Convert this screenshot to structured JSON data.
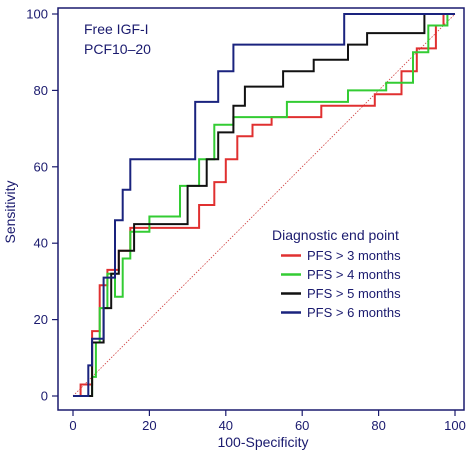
{
  "chart_data": {
    "type": "line",
    "title": "",
    "annotations": [
      "Free IGF-I",
      "PCF10–20"
    ],
    "xlabel": "100-Specificity",
    "ylabel": "Sensitivity",
    "xlim": [
      0,
      100
    ],
    "ylim": [
      0,
      100
    ],
    "xticks": [
      0,
      20,
      40,
      60,
      80,
      100
    ],
    "yticks": [
      0,
      20,
      40,
      60,
      80,
      100
    ],
    "grid": false,
    "legend": {
      "title": "Diagnostic end point",
      "placement": "right-middle"
    },
    "diagonal": {
      "color": "#d04040",
      "style": "dotted"
    },
    "series": [
      {
        "name": "PFS > 3 months",
        "color": "#e03030",
        "points": [
          [
            0,
            0
          ],
          [
            2,
            0
          ],
          [
            2,
            3
          ],
          [
            5,
            3
          ],
          [
            5,
            17
          ],
          [
            7,
            17
          ],
          [
            7,
            29
          ],
          [
            9,
            29
          ],
          [
            9,
            33
          ],
          [
            12,
            33
          ],
          [
            12,
            38
          ],
          [
            15,
            38
          ],
          [
            15,
            44
          ],
          [
            33,
            44
          ],
          [
            33,
            50
          ],
          [
            37,
            50
          ],
          [
            37,
            56
          ],
          [
            40,
            56
          ],
          [
            40,
            62
          ],
          [
            43,
            62
          ],
          [
            43,
            68
          ],
          [
            47,
            68
          ],
          [
            47,
            71
          ],
          [
            52,
            71
          ],
          [
            52,
            73
          ],
          [
            65,
            73
          ],
          [
            65,
            76
          ],
          [
            79,
            76
          ],
          [
            79,
            79
          ],
          [
            86,
            79
          ],
          [
            86,
            85
          ],
          [
            90,
            85
          ],
          [
            90,
            91
          ],
          [
            95,
            91
          ],
          [
            95,
            97
          ],
          [
            97,
            97
          ],
          [
            97,
            100
          ],
          [
            100,
            100
          ]
        ]
      },
      {
        "name": "PFS > 4 months",
        "color": "#33cc33",
        "points": [
          [
            0,
            0
          ],
          [
            5,
            0
          ],
          [
            5,
            5
          ],
          [
            6,
            5
          ],
          [
            6,
            14
          ],
          [
            7,
            14
          ],
          [
            7,
            23
          ],
          [
            9,
            23
          ],
          [
            9,
            32
          ],
          [
            11,
            32
          ],
          [
            11,
            26
          ],
          [
            13,
            26
          ],
          [
            13,
            36
          ],
          [
            15,
            36
          ],
          [
            15,
            43
          ],
          [
            20,
            43
          ],
          [
            20,
            47
          ],
          [
            28,
            47
          ],
          [
            28,
            55
          ],
          [
            33,
            55
          ],
          [
            33,
            62
          ],
          [
            37,
            62
          ],
          [
            37,
            71
          ],
          [
            42,
            71
          ],
          [
            42,
            73
          ],
          [
            56,
            73
          ],
          [
            56,
            77
          ],
          [
            72,
            77
          ],
          [
            72,
            80
          ],
          [
            82,
            80
          ],
          [
            82,
            82
          ],
          [
            89,
            82
          ],
          [
            89,
            90
          ],
          [
            93,
            90
          ],
          [
            93,
            97
          ],
          [
            98,
            97
          ],
          [
            98,
            100
          ],
          [
            100,
            100
          ]
        ]
      },
      {
        "name": "PFS > 5 months",
        "color": "#111111",
        "points": [
          [
            0,
            0
          ],
          [
            5,
            0
          ],
          [
            5,
            14
          ],
          [
            8,
            14
          ],
          [
            8,
            23
          ],
          [
            10,
            23
          ],
          [
            10,
            32
          ],
          [
            12,
            32
          ],
          [
            12,
            38
          ],
          [
            16,
            38
          ],
          [
            16,
            45
          ],
          [
            30,
            45
          ],
          [
            30,
            55
          ],
          [
            35,
            55
          ],
          [
            35,
            62
          ],
          [
            38,
            62
          ],
          [
            38,
            69
          ],
          [
            42,
            69
          ],
          [
            42,
            76
          ],
          [
            45,
            76
          ],
          [
            45,
            81
          ],
          [
            55,
            81
          ],
          [
            55,
            85
          ],
          [
            63,
            85
          ],
          [
            63,
            88
          ],
          [
            72,
            88
          ],
          [
            72,
            92
          ],
          [
            77,
            92
          ],
          [
            77,
            95
          ],
          [
            92,
            95
          ],
          [
            92,
            100
          ],
          [
            100,
            100
          ]
        ]
      },
      {
        "name": "PFS > 6 months",
        "color": "#1a237e",
        "points": [
          [
            0,
            0
          ],
          [
            4,
            0
          ],
          [
            4,
            8
          ],
          [
            5,
            8
          ],
          [
            5,
            15
          ],
          [
            8,
            15
          ],
          [
            8,
            31
          ],
          [
            11,
            31
          ],
          [
            11,
            46
          ],
          [
            13,
            46
          ],
          [
            13,
            54
          ],
          [
            15,
            54
          ],
          [
            15,
            62
          ],
          [
            32,
            62
          ],
          [
            32,
            77
          ],
          [
            38,
            77
          ],
          [
            38,
            85
          ],
          [
            42,
            85
          ],
          [
            42,
            92
          ],
          [
            71,
            92
          ],
          [
            71,
            100
          ],
          [
            100,
            100
          ]
        ]
      }
    ]
  }
}
